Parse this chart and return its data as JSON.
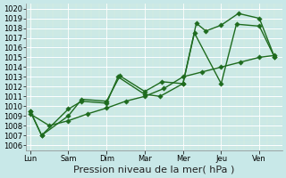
{
  "xlabel": "Pression niveau de la mer( hPa )",
  "background_color": "#c8e8e8",
  "grid_color": "#b8d8d8",
  "line_color": "#1e6b1e",
  "ylim": [
    1005.5,
    1020.5
  ],
  "yticks": [
    1006,
    1007,
    1008,
    1009,
    1010,
    1011,
    1012,
    1013,
    1014,
    1015,
    1016,
    1017,
    1018,
    1019,
    1020
  ],
  "x_labels": [
    "Lun",
    "Sam",
    "Dim",
    "Mar",
    "Mer",
    "Jeu",
    "Ven"
  ],
  "x_tick_pos": [
    0,
    1,
    2,
    3,
    4,
    5,
    6
  ],
  "xlim": [
    -0.1,
    6.6
  ],
  "s1_x": [
    0.0,
    0.3,
    1.0,
    1.35,
    2.0,
    2.3,
    3.0,
    3.4,
    4.0,
    4.3,
    5.0,
    5.4,
    6.0,
    6.4
  ],
  "s1_y": [
    1009.5,
    1007.0,
    1009.7,
    1010.5,
    1010.3,
    1013.0,
    1011.2,
    1011.0,
    1012.3,
    1017.5,
    1012.3,
    1018.4,
    1018.2,
    1015.0
  ],
  "s2_x": [
    0.0,
    0.3,
    1.0,
    1.35,
    2.0,
    2.35,
    3.0,
    3.45,
    4.0,
    4.35,
    4.6,
    5.0,
    5.45,
    6.0,
    6.4
  ],
  "s2_y": [
    1009.5,
    1007.0,
    1009.0,
    1010.7,
    1010.5,
    1013.1,
    1011.5,
    1012.5,
    1012.3,
    1018.5,
    1017.7,
    1018.3,
    1019.5,
    1019.0,
    1015.0
  ],
  "s3_x": [
    0.0,
    0.5,
    1.0,
    1.5,
    2.0,
    2.5,
    3.0,
    3.5,
    4.0,
    4.5,
    5.0,
    5.5,
    6.0,
    6.4
  ],
  "s3_y": [
    1009.2,
    1008.0,
    1008.5,
    1009.2,
    1009.8,
    1010.5,
    1011.0,
    1011.8,
    1013.0,
    1013.5,
    1014.0,
    1014.5,
    1015.0,
    1015.2
  ],
  "markersize": 2.8,
  "linewidth": 1.0,
  "tick_fontsize": 6,
  "xlabel_fontsize": 8
}
